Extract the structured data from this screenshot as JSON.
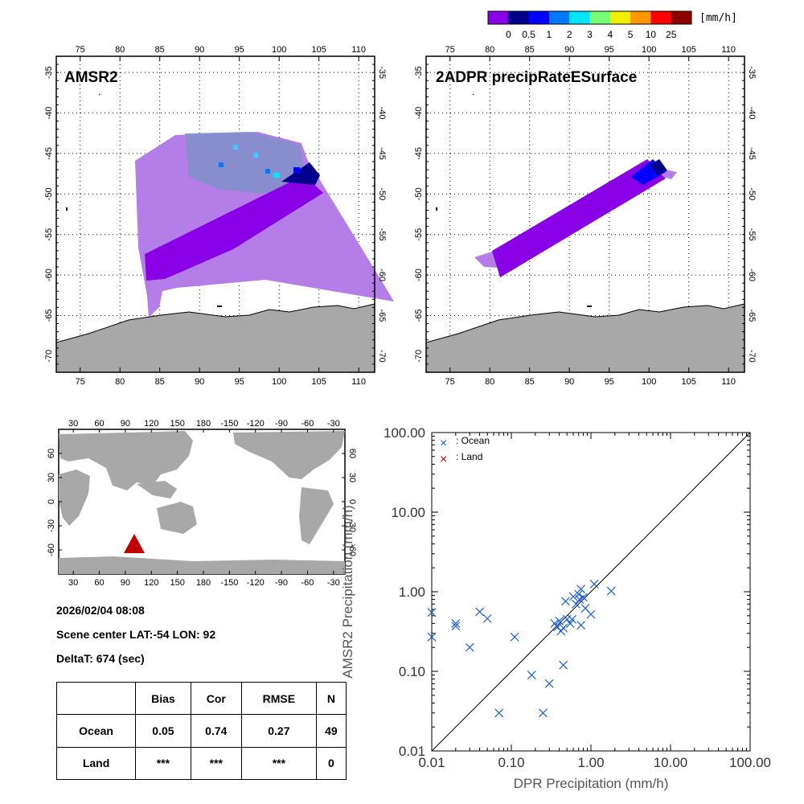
{
  "colorbar": {
    "unit": "[mm/h]",
    "ticks": [
      "0",
      "0.5",
      "1",
      "2",
      "3",
      "4",
      "5",
      "10",
      "25"
    ],
    "colors": [
      "#8a00e6",
      "#00008c",
      "#0000ff",
      "#0078ff",
      "#00e6ff",
      "#78ff78",
      "#f0f000",
      "#ff9600",
      "#ff0000",
      "#8c0000"
    ]
  },
  "panels": {
    "amsr2": {
      "title": "AMSR2"
    },
    "dpr": {
      "title": "2ADPR precipRateESurface"
    }
  },
  "map_axes": {
    "lon_ticks": [
      "75",
      "80",
      "85",
      "90",
      "95",
      "100",
      "105",
      "110"
    ],
    "lat_ticks": [
      "-35",
      "-40",
      "-45",
      "-50",
      "-55",
      "-60",
      "-65",
      "-70"
    ]
  },
  "world_axes": {
    "lon_ticks": [
      "30",
      "60",
      "90",
      "120",
      "150",
      "180",
      "-150",
      "-120",
      "-90",
      "-60",
      "-30"
    ],
    "lat_ticks": [
      "60",
      "30",
      "0",
      "-30",
      "-60"
    ],
    "marker_color": "#c00000"
  },
  "info": {
    "datetime": "2026/02/04 08:08",
    "scene_center": "Scene center LAT:-54   LON:  92",
    "delta_t": "DeltaT:  674 (sec)"
  },
  "stats_table": {
    "headers": [
      "",
      "Bias",
      "Cor",
      "RMSE",
      "N"
    ],
    "rows": [
      [
        "Ocean",
        "0.05",
        "0.74",
        "0.27",
        "49"
      ],
      [
        "Land",
        "***",
        "***",
        "***",
        "0"
      ]
    ]
  },
  "chart_data": {
    "type": "scatter",
    "xlabel": "DPR Precipitation (mm/h)",
    "ylabel": "AMSR2 Precipitation (mm/h)",
    "xscale": "log",
    "yscale": "log",
    "xlim": [
      0.01,
      100
    ],
    "ylim": [
      0.01,
      100
    ],
    "x_tick_labels": [
      "0.01",
      "0.10",
      "1.00",
      "10.00",
      "100.00"
    ],
    "y_tick_labels": [
      "0.01",
      "0.10",
      "1.00",
      "10.00",
      "100.00"
    ],
    "legend": [
      "x  : Ocean",
      "x  : Land"
    ],
    "legend_position": "top-left",
    "reference_line": "1:1",
    "series": [
      {
        "name": "Ocean",
        "color": "#1a5fd6",
        "points": [
          [
            0.01,
            0.55
          ],
          [
            0.01,
            0.27
          ],
          [
            0.02,
            0.4
          ],
          [
            0.02,
            0.37
          ],
          [
            0.03,
            0.2
          ],
          [
            0.04,
            0.56
          ],
          [
            0.05,
            0.46
          ],
          [
            0.07,
            0.03
          ],
          [
            0.11,
            0.27
          ],
          [
            0.18,
            0.09
          ],
          [
            0.25,
            0.03
          ],
          [
            0.3,
            0.07
          ],
          [
            0.35,
            0.4
          ],
          [
            0.38,
            0.36
          ],
          [
            0.4,
            0.43
          ],
          [
            0.42,
            0.32
          ],
          [
            0.45,
            0.35
          ],
          [
            0.45,
            0.12
          ],
          [
            0.48,
            0.76
          ],
          [
            0.5,
            0.45
          ],
          [
            0.55,
            0.4
          ],
          [
            0.58,
            0.45
          ],
          [
            0.6,
            0.87
          ],
          [
            0.65,
            0.7
          ],
          [
            0.7,
            0.93
          ],
          [
            0.72,
            0.8
          ],
          [
            0.75,
            1.08
          ],
          [
            0.75,
            0.38
          ],
          [
            0.8,
            0.85
          ],
          [
            0.85,
            0.62
          ],
          [
            1.0,
            0.52
          ],
          [
            1.1,
            1.25
          ],
          [
            1.8,
            1.02
          ]
        ]
      },
      {
        "name": "Land",
        "color": "#c00000",
        "points": []
      }
    ]
  }
}
